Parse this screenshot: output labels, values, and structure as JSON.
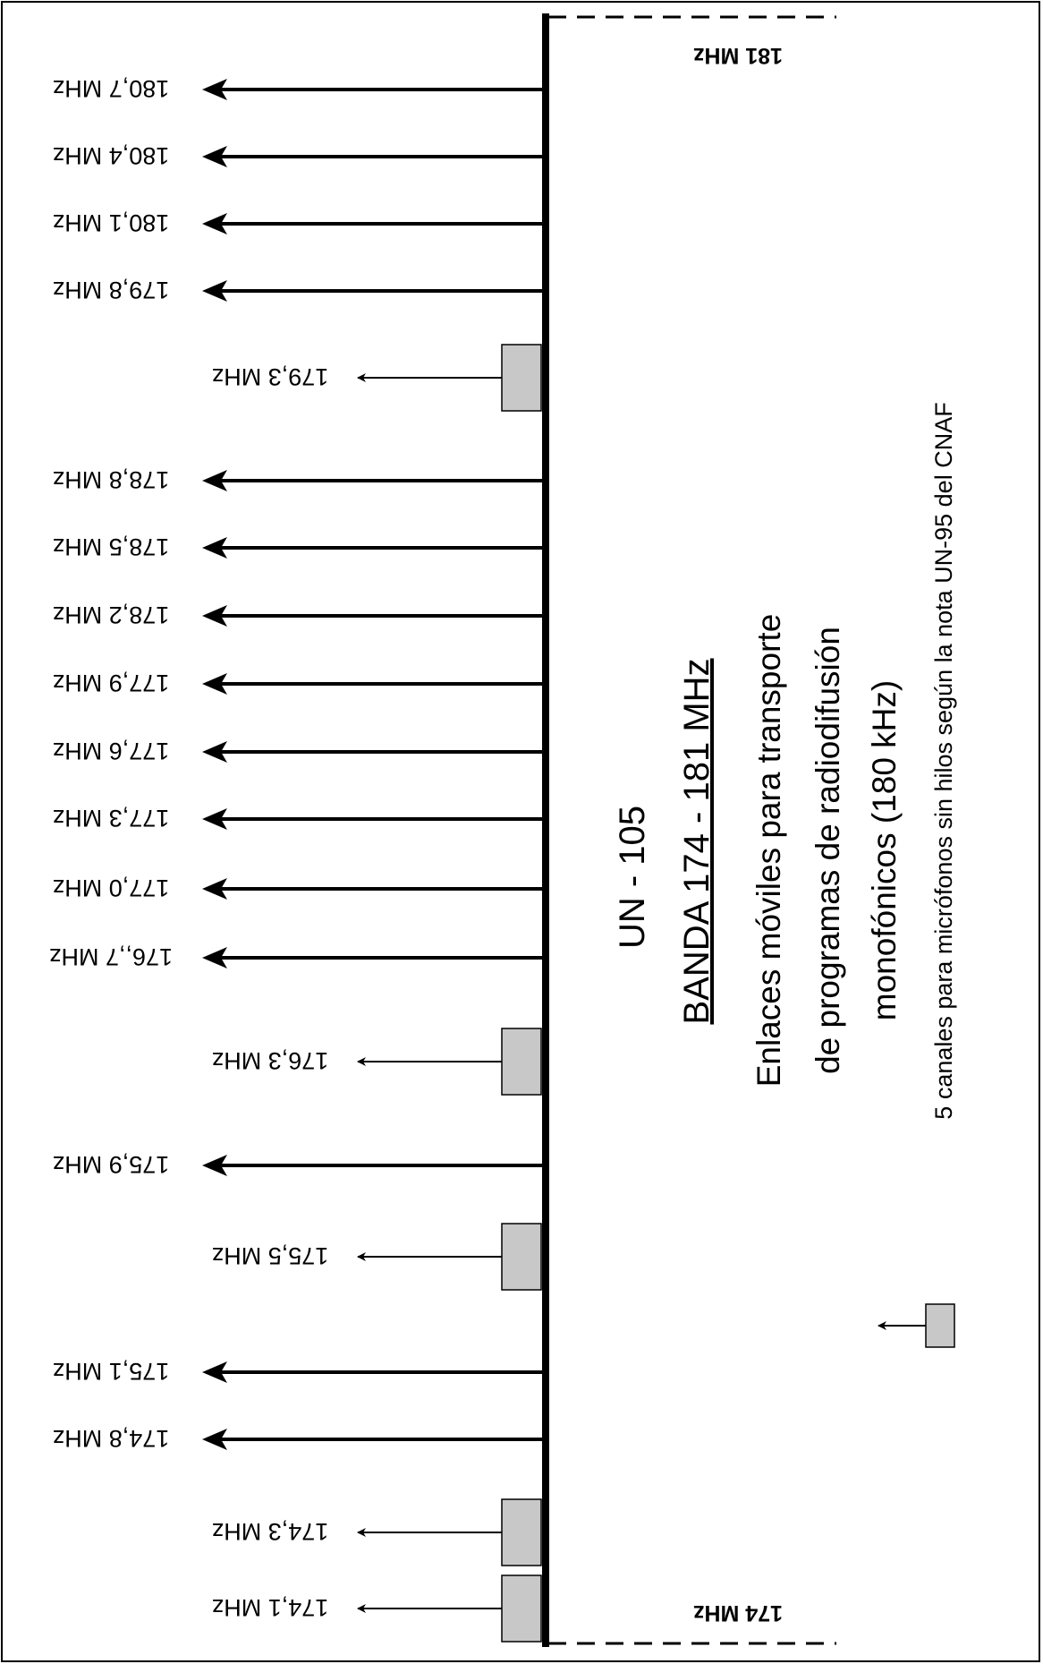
{
  "diagram": {
    "title": "UN - 105",
    "band": "BANDA 174 - 181 MHz",
    "description_lines": [
      "Enlaces móviles para transporte",
      "de programas de radiodifusión",
      "monofónicos (180 kHz)"
    ],
    "legend_text": "5 canales para micrófonos sin hilos según la  nota UN-95 del CNAF",
    "band_start_label": "174 MHz",
    "band_end_label": "181 MHz",
    "colors": {
      "line": "#000000",
      "mic_box": "#c8c8c8"
    },
    "channels": [
      {
        "label": "180,7 MHz",
        "mhz": 180.7,
        "type": "link"
      },
      {
        "label": "180,4 MHz",
        "mhz": 180.4,
        "type": "link"
      },
      {
        "label": "180,1 MHz",
        "mhz": 180.1,
        "type": "link"
      },
      {
        "label": "179,8 MHz",
        "mhz": 179.8,
        "type": "link"
      },
      {
        "label": "179,3 MHz",
        "mhz": 179.3,
        "type": "mic"
      },
      {
        "label": "178,8  MHz",
        "mhz": 178.8,
        "type": "link"
      },
      {
        "label": "178,5 MHz",
        "mhz": 178.5,
        "type": "link"
      },
      {
        "label": "178,2  MHz",
        "mhz": 178.2,
        "type": "link"
      },
      {
        "label": "177,9  MHz",
        "mhz": 177.9,
        "type": "link"
      },
      {
        "label": "177,6  MHz",
        "mhz": 177.6,
        "type": "link"
      },
      {
        "label": "177,3  MHz",
        "mhz": 177.3,
        "type": "link"
      },
      {
        "label": "177,0 MHz",
        "mhz": 177.0,
        "type": "link"
      },
      {
        "label": "176,,7 MHz",
        "mhz": 176.7,
        "type": "link"
      },
      {
        "label": "176,3 MHz",
        "mhz": 176.3,
        "type": "mic"
      },
      {
        "label": "175,9 MHz",
        "mhz": 175.9,
        "type": "link"
      },
      {
        "label": "175,5 MHz",
        "mhz": 175.5,
        "type": "mic"
      },
      {
        "label": "175,1 MHz",
        "mhz": 175.1,
        "type": "link"
      },
      {
        "label": "174,8 MHz",
        "mhz": 174.8,
        "type": "link"
      },
      {
        "label": "174,3 MHz",
        "mhz": 174.3,
        "type": "mic"
      },
      {
        "label": "174,1 MHz",
        "mhz": 174.1,
        "type": "mic"
      }
    ]
  }
}
